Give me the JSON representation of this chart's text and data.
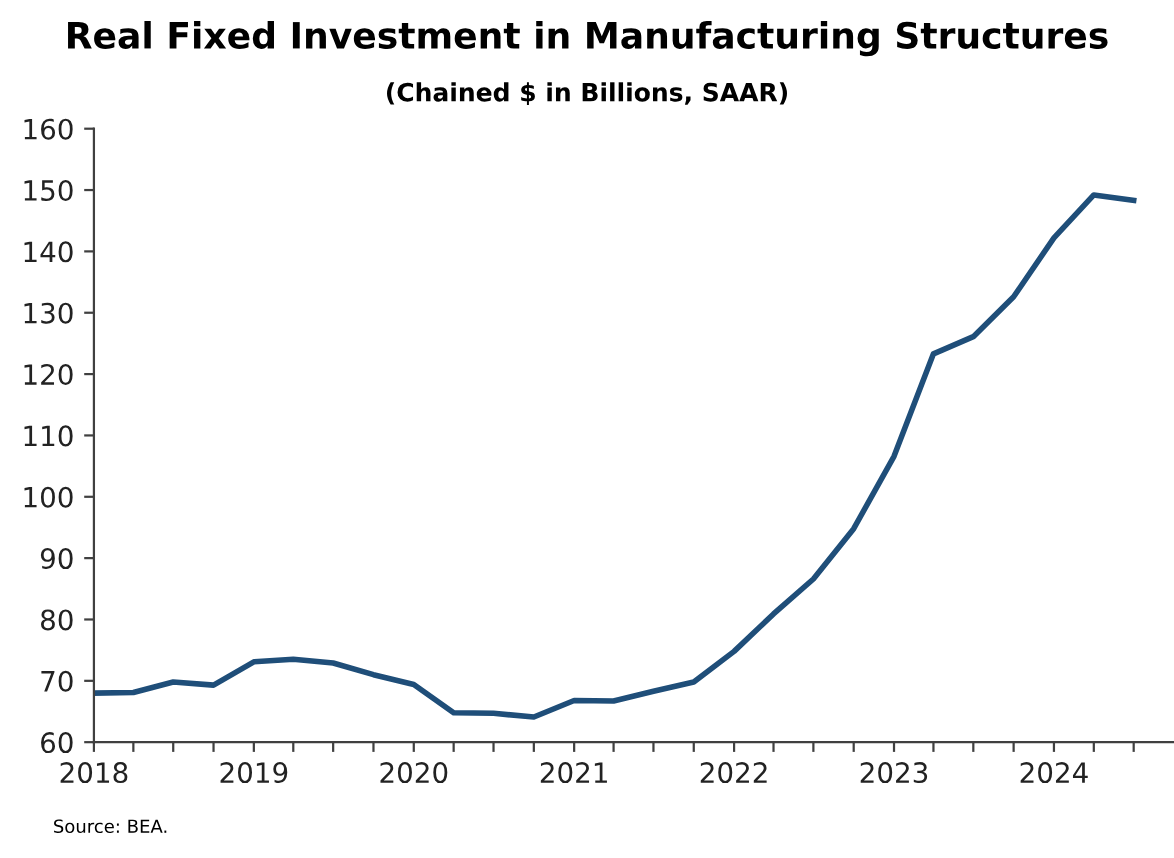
{
  "chart_data": {
    "type": "line",
    "title": "Real Fixed Investment in Manufacturing Structures",
    "subtitle": "(Chained $ in Billions, SAAR)",
    "x": [
      "2018-01",
      "2018-04",
      "2018-07",
      "2018-10",
      "2019-01",
      "2019-04",
      "2019-07",
      "2019-10",
      "2020-01",
      "2020-04",
      "2020-07",
      "2020-10",
      "2021-01",
      "2021-04",
      "2021-07",
      "2021-10",
      "2022-01",
      "2022-04",
      "2022-07",
      "2022-10",
      "2023-01",
      "2023-04",
      "2023-07",
      "2023-10",
      "2024-01",
      "2024-04",
      "2024-07"
    ],
    "series": [
      {
        "color": "#1f4e79",
        "values": [
          68,
          68.1,
          69.8,
          69.3,
          73.1,
          73.5,
          72.9,
          71,
          69.4,
          64.8,
          64.7,
          64.1,
          66.8,
          66.7,
          68.3,
          69.8,
          74.8,
          80.9,
          86.6,
          94.8,
          106.6,
          123.3,
          126.1,
          132.6,
          142.2,
          149.2,
          148.3
        ]
      }
    ],
    "xlim": [
      "2018-01",
      "2024-10"
    ],
    "xticks": [
      {
        "value": "2018-01",
        "label": "2018"
      },
      {
        "value": "2018-04",
        "label": null
      },
      {
        "value": "2018-07",
        "label": null
      },
      {
        "value": "2018-10",
        "label": null
      },
      {
        "value": "2019-01",
        "label": "2019"
      },
      {
        "value": "2019-04",
        "label": null
      },
      {
        "value": "2019-07",
        "label": null
      },
      {
        "value": "2019-10",
        "label": null
      },
      {
        "value": "2020-01",
        "label": "2020"
      },
      {
        "value": "2020-04",
        "label": null
      },
      {
        "value": "2020-07",
        "label": null
      },
      {
        "value": "2020-10",
        "label": null
      },
      {
        "value": "2021-01",
        "label": "2021"
      },
      {
        "value": "2021-04",
        "label": null
      },
      {
        "value": "2021-07",
        "label": null
      },
      {
        "value": "2021-10",
        "label": null
      },
      {
        "value": "2022-01",
        "label": "2022"
      },
      {
        "value": "2022-04",
        "label": null
      },
      {
        "value": "2022-07",
        "label": null
      },
      {
        "value": "2022-10",
        "label": null
      },
      {
        "value": "2023-01",
        "label": "2023"
      },
      {
        "value": "2023-04",
        "label": null
      },
      {
        "value": "2023-07",
        "label": null
      },
      {
        "value": "2023-10",
        "label": null
      },
      {
        "value": "2024-01",
        "label": "2024"
      },
      {
        "value": "2024-04",
        "label": null
      },
      {
        "value": "2024-07",
        "label": null
      }
    ],
    "ylim": [
      60,
      160
    ],
    "yticks": [
      60,
      70,
      80,
      90,
      100,
      110,
      120,
      130,
      140,
      150,
      160
    ],
    "grid": false,
    "marker": "none",
    "line_style": "solid",
    "annotations": [
      "Source: BEA."
    ]
  }
}
